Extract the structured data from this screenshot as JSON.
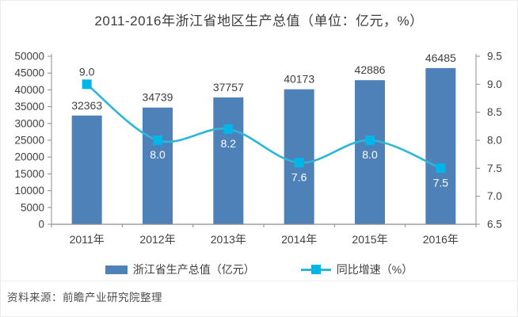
{
  "title": "2011-2016年浙江省地区生产总值（单位：亿元，%）",
  "source": "资料来源：前瞻产业研究院整理",
  "legend": [
    {
      "label": "浙江省生产总值（亿元）",
      "swatch": "bar"
    },
    {
      "label": "同比增速（%）",
      "swatch": "line"
    }
  ],
  "chart_data": {
    "type": "bar",
    "subtype": "bar-line-combo",
    "title": "2011-2016年浙江省地区生产总值（单位：亿元，%）",
    "categories": [
      "2011年",
      "2012年",
      "2013年",
      "2014年",
      "2015年",
      "2016年"
    ],
    "series": [
      {
        "name": "浙江省生产总值（亿元）",
        "type": "bar",
        "axis": "left",
        "values": [
          32363,
          34739,
          37757,
          40173,
          42886,
          46485
        ],
        "labels": [
          "32363",
          "34739",
          "37757",
          "40173",
          "42886",
          "46485"
        ]
      },
      {
        "name": "同比增速（%）",
        "type": "line",
        "axis": "right",
        "values": [
          9.0,
          8.0,
          8.2,
          7.6,
          8.0,
          7.5
        ],
        "labels": [
          "9.0",
          "8.0",
          "8.2",
          "7.6",
          "8.0",
          "7.5"
        ],
        "label_placement": [
          "above",
          "below",
          "below",
          "below",
          "below",
          "below"
        ]
      }
    ],
    "left_axis": {
      "min": 0,
      "max": 50000,
      "step": 5000,
      "ticks": [
        "0",
        "5000",
        "10000",
        "15000",
        "20000",
        "25000",
        "30000",
        "35000",
        "40000",
        "45000",
        "50000"
      ]
    },
    "right_axis": {
      "min": 6.5,
      "max": 9.5,
      "step": 0.5,
      "ticks": [
        "6.5",
        "7.0",
        "7.5",
        "8.0",
        "8.5",
        "9.0",
        "9.5"
      ]
    },
    "legend_position": "bottom",
    "grid": false,
    "colors": {
      "bar": "#4e81b8",
      "line": "#2eb6d9",
      "marker": "#00b5e8",
      "bar_label": "#3f3f3f",
      "line_label_above": "#3f3f3f",
      "line_label_on_bar": "#ffffff",
      "axis": "#8c8c8c",
      "text": "#3f3f3f"
    }
  }
}
